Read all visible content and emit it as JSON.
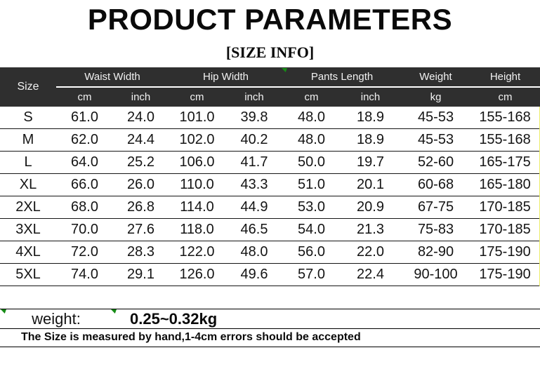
{
  "title": "PRODUCT PARAMETERS",
  "subtitle": "[SIZE INFO]",
  "table": {
    "size_label": "Size",
    "groups": [
      {
        "label": "Waist Width",
        "units": [
          "cm",
          "inch"
        ]
      },
      {
        "label": "Hip Width",
        "units": [
          "cm",
          "inch"
        ]
      },
      {
        "label": "Pants Length",
        "units": [
          "cm",
          "inch"
        ]
      },
      {
        "label": "Weight",
        "units": [
          "kg"
        ]
      },
      {
        "label": "Height",
        "units": [
          "cm"
        ]
      }
    ],
    "rows": [
      {
        "size": "S",
        "values": [
          "61.0",
          "24.0",
          "101.0",
          "39.8",
          "48.0",
          "18.9",
          "45-53",
          "155-168"
        ]
      },
      {
        "size": "M",
        "values": [
          "62.0",
          "24.4",
          "102.0",
          "40.2",
          "48.0",
          "18.9",
          "45-53",
          "155-168"
        ]
      },
      {
        "size": "L",
        "values": [
          "64.0",
          "25.2",
          "106.0",
          "41.7",
          "50.0",
          "19.7",
          "52-60",
          "165-175"
        ]
      },
      {
        "size": "XL",
        "values": [
          "66.0",
          "26.0",
          "110.0",
          "43.3",
          "51.0",
          "20.1",
          "60-68",
          "165-180"
        ]
      },
      {
        "size": "2XL",
        "values": [
          "68.0",
          "26.8",
          "114.0",
          "44.9",
          "53.0",
          "20.9",
          "67-75",
          "170-185"
        ]
      },
      {
        "size": "3XL",
        "values": [
          "70.0",
          "27.6",
          "118.0",
          "46.5",
          "54.0",
          "21.3",
          "75-83",
          "170-185"
        ]
      },
      {
        "size": "4XL",
        "values": [
          "72.0",
          "28.3",
          "122.0",
          "48.0",
          "56.0",
          "22.0",
          "82-90",
          "175-190"
        ]
      },
      {
        "size": "5XL",
        "values": [
          "74.0",
          "29.1",
          "126.0",
          "49.6",
          "57.0",
          "22.4",
          "90-100",
          "175-190"
        ]
      }
    ]
  },
  "footer": {
    "weight_label": "weight:",
    "weight_value": "0.25~0.32kg",
    "note": "The Size is measured by hand,1-4cm errors should be accepted"
  },
  "icons": {
    "comment_marker": "green-corner-triangle-icon"
  },
  "colors": {
    "header_bg": "#2f2f2f",
    "header_text": "#f2f2f2",
    "marker_green": "#168a16",
    "right_edge_yellow": "#ecec6c",
    "row_line": "#151515"
  }
}
